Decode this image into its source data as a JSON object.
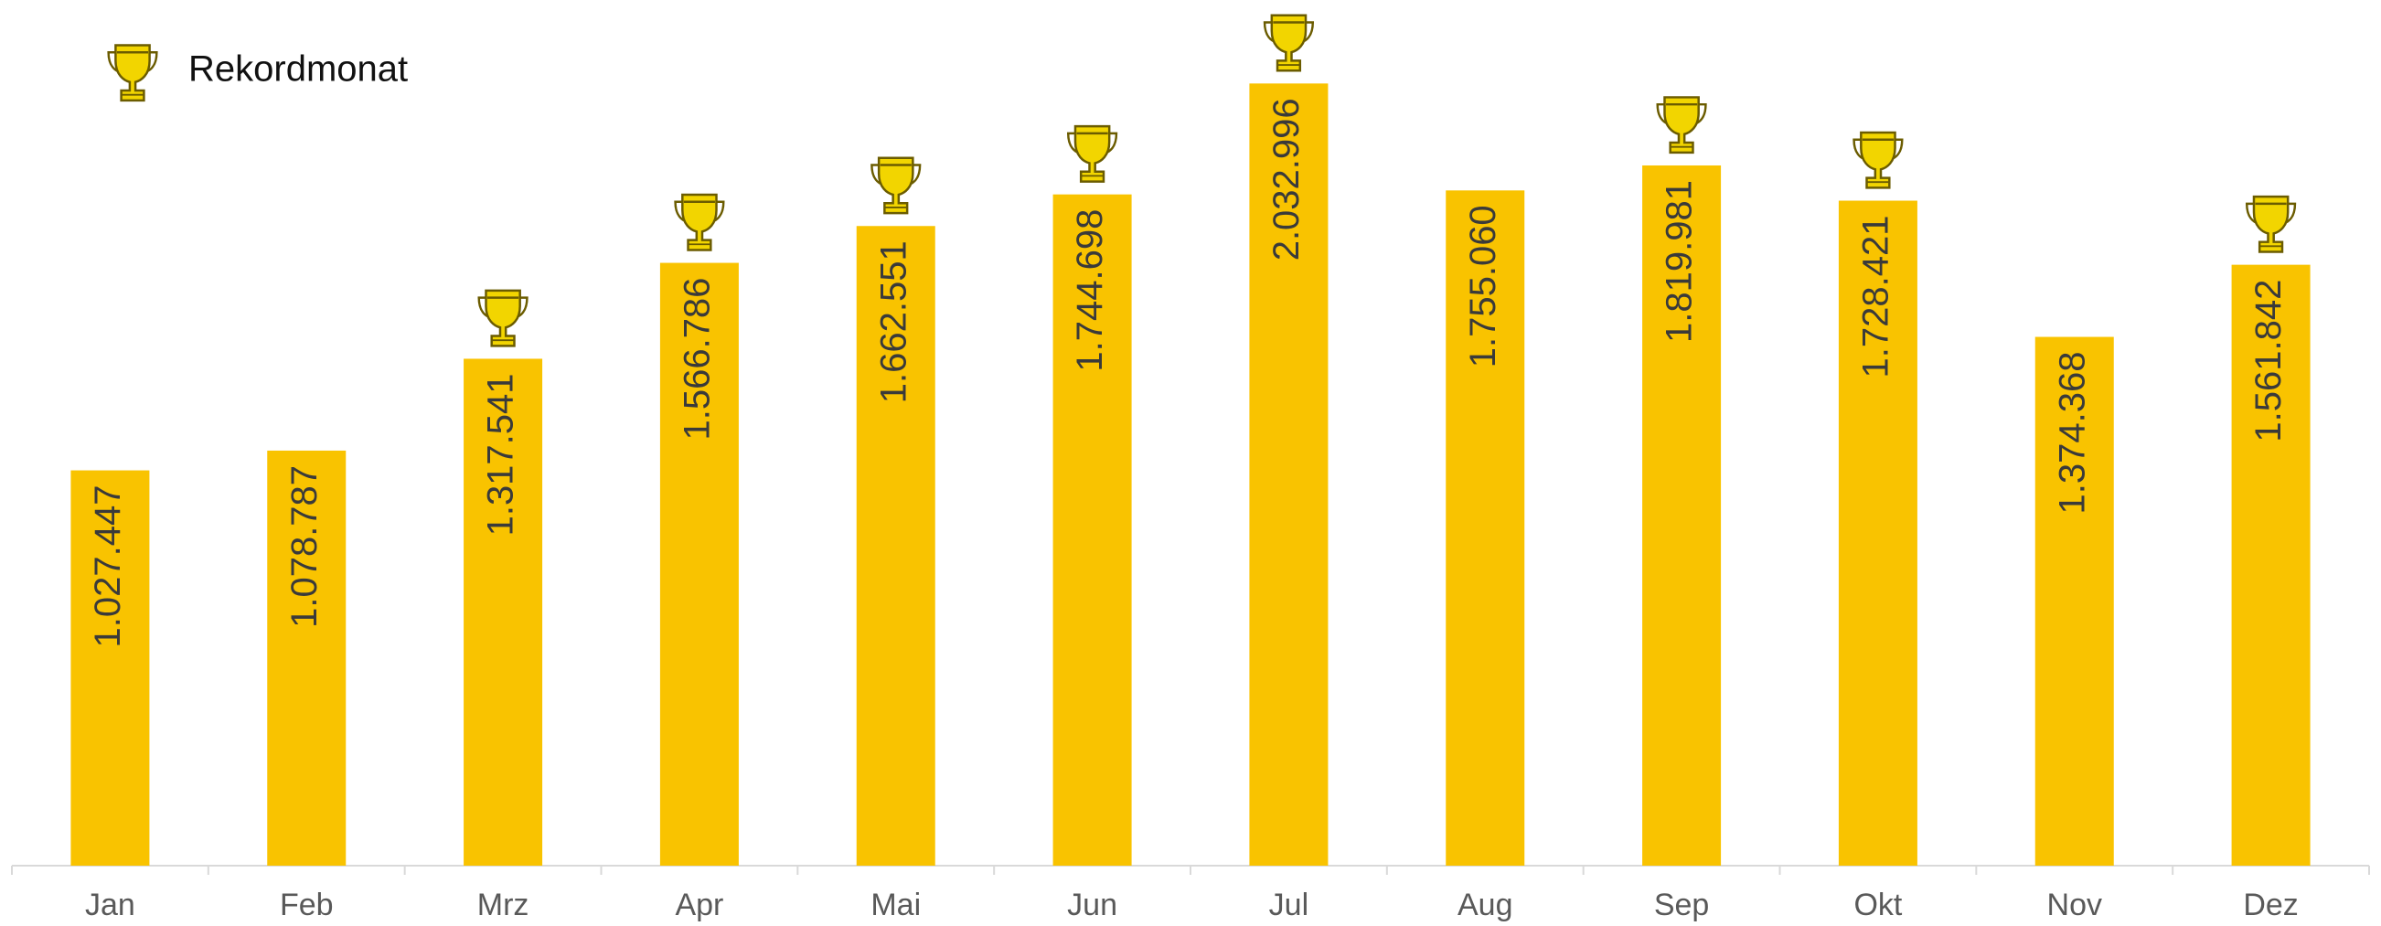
{
  "chart_data": {
    "type": "bar",
    "categories": [
      "Jan",
      "Feb",
      "Mrz",
      "Apr",
      "Mai",
      "Jun",
      "Jul",
      "Aug",
      "Sep",
      "Okt",
      "Nov",
      "Dez"
    ],
    "values": [
      1027447,
      1078787,
      1317541,
      1566786,
      1662551,
      1744698,
      2032996,
      1755060,
      1819981,
      1728421,
      1374368,
      1561842
    ],
    "value_labels": [
      "1.027.447",
      "1.078.787",
      "1.317.541",
      "1.566.786",
      "1.662.551",
      "1.744.698",
      "2.032.996",
      "1.755.060",
      "1.819.981",
      "1.728.421",
      "1.374.368",
      "1.561.842"
    ],
    "records": [
      false,
      false,
      true,
      true,
      true,
      true,
      true,
      false,
      true,
      true,
      false,
      true
    ],
    "legend_label": "Rekordmonat",
    "color": "#f9c300",
    "ylim": [
      0,
      2250000
    ]
  }
}
